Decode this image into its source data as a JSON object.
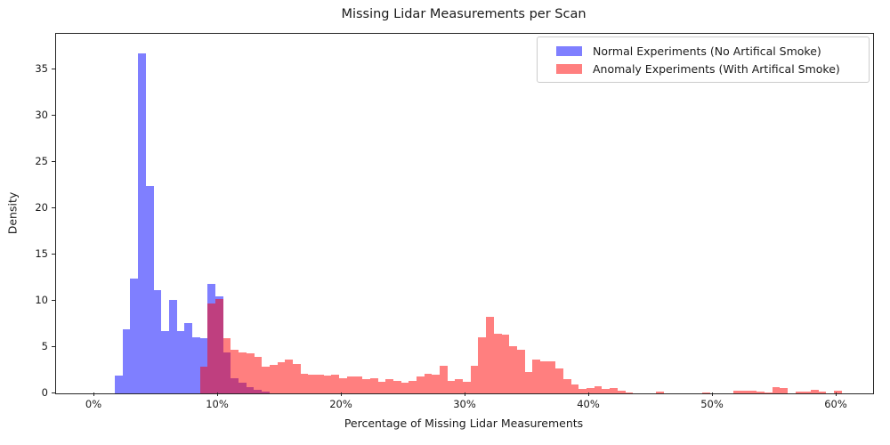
{
  "title": "Missing Lidar Measurements per Scan",
  "axes": {
    "xlabel": "Percentage of Missing Lidar Measurements",
    "ylabel": "Density",
    "x_tick_labels": [
      "0%",
      "10%",
      "20%",
      "30%",
      "40%",
      "50%",
      "60%"
    ],
    "x_tick_values": [
      0,
      10,
      20,
      30,
      40,
      50,
      60
    ],
    "y_tick_labels": [
      "0",
      "5",
      "10",
      "15",
      "20",
      "25",
      "30",
      "35"
    ],
    "y_tick_values": [
      0,
      5,
      10,
      15,
      20,
      25,
      30,
      35
    ],
    "xlim_pct": [
      -3.1,
      63.1
    ],
    "ylim": [
      0,
      38.85
    ],
    "grid": false
  },
  "legend": {
    "position": "upper right",
    "entries": [
      {
        "label": "Normal Experiments (No Artifical Smoke)",
        "color": "rgba(0,0,255,0.5)"
      },
      {
        "label": "Anomaly Experiments (With Artifical Smoke)",
        "color": "rgba(255,0,0,0.5)"
      }
    ]
  },
  "colors": {
    "normal_fill": "#7f7fff",
    "anomaly_fill": "#ff7f7f",
    "overlap": "#bf4080",
    "spine": "#262626"
  },
  "chart_data": {
    "type": "bar",
    "subtype": "overlapping-histogram",
    "title": "Missing Lidar Measurements per Scan",
    "xlabel": "Percentage of Missing Lidar Measurements",
    "ylabel": "Density",
    "bin_width_pct": 0.625,
    "series": [
      {
        "name": "Normal Experiments (No Artifical Smoke)",
        "color": "rgba(0,0,255,0.5)",
        "bin_start_pct": 1.66,
        "heights": [
          1.9,
          6.9,
          12.4,
          36.7,
          22.4,
          11.2,
          6.7,
          10.1,
          6.7,
          7.6,
          6.1,
          6.0,
          11.85,
          10.5,
          4.4,
          1.65,
          1.2,
          0.7,
          0.4,
          0.2
        ]
      },
      {
        "name": "Anomaly Experiments (With Artifical Smoke)",
        "color": "rgba(255,0,0,0.5)",
        "bin_start_pct": 8.54,
        "heights": [
          2.9,
          9.7,
          10.2,
          6.0,
          4.7,
          4.4,
          4.3,
          3.9,
          2.9,
          3.1,
          3.4,
          3.7,
          3.2,
          2.1,
          2.0,
          2.0,
          1.9,
          2.0,
          1.65,
          1.85,
          1.85,
          1.5,
          1.65,
          1.25,
          1.55,
          1.35,
          1.15,
          1.35,
          1.85,
          2.1,
          2.05,
          3.0,
          1.35,
          1.5,
          1.25,
          2.95,
          6.05,
          8.3,
          6.45,
          6.35,
          5.1,
          4.7,
          2.35,
          3.7,
          3.5,
          3.5,
          2.7,
          1.5,
          1.0,
          0.45,
          0.55,
          0.75,
          0.45,
          0.6,
          0.27,
          0.1,
          0,
          0,
          0,
          0.2,
          0,
          0,
          0,
          0,
          0,
          0.12,
          0,
          0,
          0,
          0.25,
          0.32,
          0.3,
          0.15,
          0.1,
          0.7,
          0.55,
          0,
          0.2,
          0.2,
          0.37,
          0.15,
          0,
          0.3
        ]
      }
    ]
  }
}
